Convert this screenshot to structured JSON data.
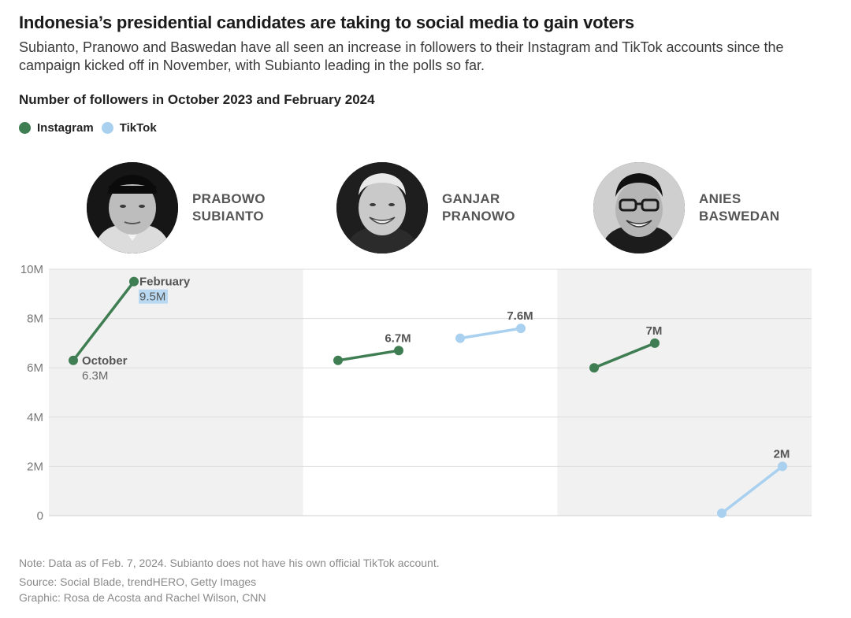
{
  "header": {
    "title": "Indonesia’s presidential candidates are taking to social media to gain voters",
    "subtitle": "Subianto, Pranowo and Baswedan have all seen an increase in followers to their Instagram and TikTok accounts since the campaign kicked off in November, with Subianto leading in the polls so far."
  },
  "chart_heading": "Number of followers in October 2023 and February 2024",
  "legend": {
    "instagram": "Instagram",
    "tiktok": "TikTok"
  },
  "colors": {
    "instagram": "#3f7d52",
    "tiktok": "#a9d1ef",
    "panel_bg": "#f1f1f1",
    "highlight": "#b9d9f2"
  },
  "candidates": [
    {
      "name": "PRABOWO\nSUBIANTO",
      "photo": "portrait-prabowo"
    },
    {
      "name": "GANJAR\nPRANOWO",
      "photo": "portrait-ganjar"
    },
    {
      "name": "ANIES\nBASWEDAN",
      "photo": "portrait-anies"
    }
  ],
  "chart_data": {
    "type": "line",
    "title": "Number of followers in October 2023 and February 2024",
    "ylim": [
      0,
      10
    ],
    "yunit": "millions of followers",
    "yticks": [
      {
        "value": 0,
        "label": "0"
      },
      {
        "value": 2,
        "label": "2M"
      },
      {
        "value": 4,
        "label": "4M"
      },
      {
        "value": 6,
        "label": "6M"
      },
      {
        "value": 8,
        "label": "8M"
      },
      {
        "value": 10,
        "label": "10M"
      }
    ],
    "x": [
      "October 2023",
      "February 2024"
    ],
    "panels": [
      {
        "candidate": "Prabowo Subianto",
        "series": [
          {
            "name": "Instagram",
            "values": [
              6.3,
              9.5
            ],
            "start_label": "October",
            "start_value_label": "6.3M",
            "end_label": "February",
            "end_value_label": "9.5M"
          }
        ]
      },
      {
        "candidate": "Ganjar Pranowo",
        "series": [
          {
            "name": "Instagram",
            "values": [
              6.3,
              6.7
            ],
            "end_value_label": "6.7M"
          },
          {
            "name": "TikTok",
            "values": [
              7.2,
              7.6
            ],
            "end_value_label": "7.6M"
          }
        ]
      },
      {
        "candidate": "Anies Baswedan",
        "series": [
          {
            "name": "Instagram",
            "values": [
              6.0,
              7.0
            ],
            "end_value_label": "7M"
          },
          {
            "name": "TikTok",
            "values": [
              0.1,
              2.0
            ],
            "end_value_label": "2M"
          }
        ]
      }
    ]
  },
  "footer": {
    "note": "Note: Data as of Feb. 7, 2024. Subianto does not have his own official TikTok account.",
    "source": "Source: Social Blade, trendHERO, Getty Images",
    "graphic": "Graphic: Rosa de Acosta and Rachel Wilson, CNN"
  }
}
